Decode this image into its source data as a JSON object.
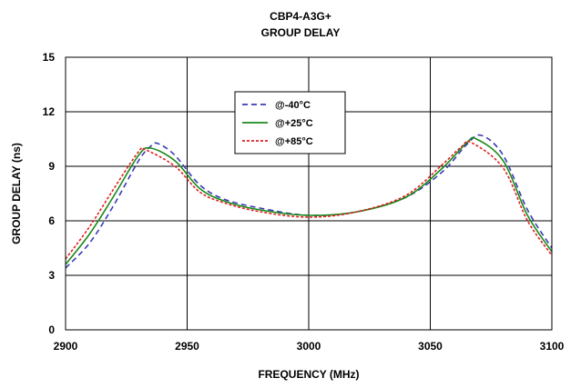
{
  "chart_data": {
    "type": "line",
    "title": "CBP4-A3G+",
    "subtitle": "GROUP DELAY",
    "xlabel": "FREQUENCY (MHz)",
    "ylabel": "GROUP DELAY (ns)",
    "xlim": [
      2900,
      3100
    ],
    "ylim": [
      0,
      15
    ],
    "xticks": [
      2900,
      2950,
      3000,
      3050,
      3100
    ],
    "yticks": [
      0,
      3,
      6,
      9,
      12,
      15
    ],
    "grid": true,
    "legend_position": "top-center",
    "series": [
      {
        "name": "@-40°C",
        "color": "#3a3ab8",
        "dash": "dashed",
        "x": [
          2900,
          2910,
          2920,
          2930,
          2935,
          2938,
          2945,
          2955,
          2965,
          2980,
          3000,
          3020,
          3040,
          3055,
          3065,
          3071,
          3080,
          3090,
          3100
        ],
        "y": [
          3.4,
          4.8,
          6.9,
          9.3,
          10.1,
          10.25,
          9.6,
          8.0,
          7.2,
          6.7,
          6.3,
          6.5,
          7.3,
          8.7,
          10.2,
          10.7,
          9.6,
          6.6,
          4.5
        ]
      },
      {
        "name": "@+25°C",
        "color": "#1a8a1a",
        "dash": "solid",
        "x": [
          2900,
          2910,
          2920,
          2930,
          2935,
          2945,
          2955,
          2965,
          2980,
          3000,
          3020,
          3040,
          3055,
          3065,
          3069,
          3080,
          3090,
          3100
        ],
        "y": [
          3.6,
          5.3,
          7.4,
          9.6,
          10.0,
          9.3,
          7.8,
          7.1,
          6.6,
          6.3,
          6.5,
          7.3,
          8.9,
          10.3,
          10.5,
          9.3,
          6.3,
          4.3
        ]
      },
      {
        "name": "@+85°C",
        "color": "#e02020",
        "dash": "dotted",
        "x": [
          2900,
          2910,
          2920,
          2930,
          2933,
          2945,
          2955,
          2965,
          2980,
          3000,
          3020,
          3040,
          3055,
          3063,
          3067,
          3080,
          3090,
          3100
        ],
        "y": [
          3.9,
          5.7,
          7.8,
          9.8,
          9.9,
          9.0,
          7.6,
          7.0,
          6.5,
          6.2,
          6.5,
          7.4,
          9.1,
          10.1,
          10.3,
          8.9,
          6.0,
          4.1
        ]
      }
    ]
  }
}
